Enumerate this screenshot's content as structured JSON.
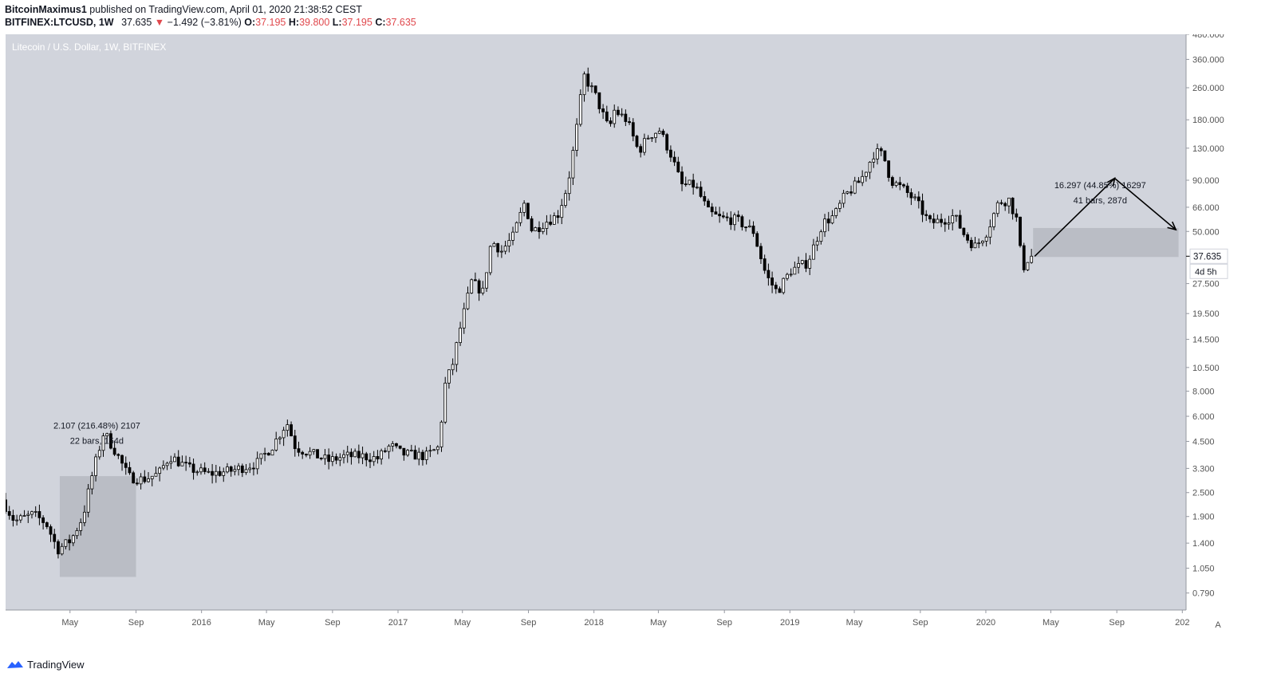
{
  "header": {
    "author": "BitcoinMaximus1",
    "published_text": " published on TradingView.com, April 01, 2020 21:38:52 CEST",
    "symbol": "BITFINEX:LTCUSD, 1W",
    "last_price": "37.635",
    "change_arrow": "▼",
    "change": "−1.492 (−3.81%)",
    "o_label": "O:",
    "o_value": "37.195",
    "h_label": "H:",
    "h_value": "39.800",
    "l_label": "L:",
    "l_value": "37.195",
    "c_label": "C:",
    "c_value": "37.635"
  },
  "footer": {
    "brand": "TradingView"
  },
  "auto_label": "A",
  "colors": {
    "plot_bg": "#d1d4dc",
    "axis_bg": "#ffffff",
    "candle": "#000000",
    "range_box": "#b2b5be",
    "price_change": "#e0484d"
  },
  "chart_data": {
    "type": "candlestick",
    "title": "Litecoin / U.S. Dollar, 1W, BITFINEX",
    "y_scale": "log",
    "y_range": [
      0.65,
      480
    ],
    "y_ticks": [
      {
        "value": 480,
        "label": "480.000"
      },
      {
        "value": 360,
        "label": "360.000"
      },
      {
        "value": 260,
        "label": "260.000"
      },
      {
        "value": 180,
        "label": "180.000"
      },
      {
        "value": 130,
        "label": "130.000"
      },
      {
        "value": 90,
        "label": "90.000"
      },
      {
        "value": 66,
        "label": "66.000"
      },
      {
        "value": 50,
        "label": "50.000"
      },
      {
        "value": 27.5,
        "label": "27.500"
      },
      {
        "value": 19.5,
        "label": "19.500"
      },
      {
        "value": 14.5,
        "label": "14.500"
      },
      {
        "value": 10.5,
        "label": "10.500"
      },
      {
        "value": 8,
        "label": "8.000"
      },
      {
        "value": 6,
        "label": "6.000"
      },
      {
        "value": 4.5,
        "label": "4.500"
      },
      {
        "value": 3.3,
        "label": "3.300"
      },
      {
        "value": 2.5,
        "label": "2.500"
      },
      {
        "value": 1.9,
        "label": "1.900"
      },
      {
        "value": 1.4,
        "label": "1.400"
      },
      {
        "value": 1.05,
        "label": "1.050"
      },
      {
        "value": 0.79,
        "label": "0.790"
      }
    ],
    "x_range": [
      "2015-01-01",
      "2021-01-08"
    ],
    "x_ticks": [
      {
        "date": "2015-05-01",
        "label": "May"
      },
      {
        "date": "2015-09-01",
        "label": "Sep"
      },
      {
        "date": "2016-01-01",
        "label": "2016"
      },
      {
        "date": "2016-05-01",
        "label": "May"
      },
      {
        "date": "2016-09-01",
        "label": "Sep"
      },
      {
        "date": "2017-01-01",
        "label": "2017"
      },
      {
        "date": "2017-05-01",
        "label": "May"
      },
      {
        "date": "2017-09-01",
        "label": "Sep"
      },
      {
        "date": "2018-01-01",
        "label": "2018"
      },
      {
        "date": "2018-05-01",
        "label": "May"
      },
      {
        "date": "2018-09-01",
        "label": "Sep"
      },
      {
        "date": "2019-01-01",
        "label": "2019"
      },
      {
        "date": "2019-05-01",
        "label": "May"
      },
      {
        "date": "2019-09-01",
        "label": "Sep"
      },
      {
        "date": "2020-01-01",
        "label": "2020"
      },
      {
        "date": "2020-05-01",
        "label": "May"
      },
      {
        "date": "2020-09-01",
        "label": "Sep"
      },
      {
        "date": "2021-01-01",
        "label": "202"
      }
    ],
    "price_series": [
      {
        "date": "2015-01-01",
        "price": 2.3
      },
      {
        "date": "2015-01-25",
        "price": 1.8
      },
      {
        "date": "2015-03-01",
        "price": 1.95
      },
      {
        "date": "2015-03-25",
        "price": 1.75
      },
      {
        "date": "2015-04-15",
        "price": 1.3
      },
      {
        "date": "2015-05-10",
        "price": 1.45
      },
      {
        "date": "2015-06-01",
        "price": 1.9
      },
      {
        "date": "2015-06-20",
        "price": 3.2
      },
      {
        "date": "2015-07-10",
        "price": 5.0
      },
      {
        "date": "2015-08-01",
        "price": 4.0
      },
      {
        "date": "2015-08-25",
        "price": 3.0
      },
      {
        "date": "2015-09-20",
        "price": 2.9
      },
      {
        "date": "2015-10-20",
        "price": 3.1
      },
      {
        "date": "2015-11-10",
        "price": 3.8
      },
      {
        "date": "2015-12-15",
        "price": 3.3
      },
      {
        "date": "2016-01-20",
        "price": 3.1
      },
      {
        "date": "2016-03-01",
        "price": 3.2
      },
      {
        "date": "2016-04-20",
        "price": 3.5
      },
      {
        "date": "2016-05-20",
        "price": 4.3
      },
      {
        "date": "2016-06-15",
        "price": 5.6
      },
      {
        "date": "2016-07-01",
        "price": 4.2
      },
      {
        "date": "2016-08-01",
        "price": 3.9
      },
      {
        "date": "2016-09-01",
        "price": 3.6
      },
      {
        "date": "2016-10-01",
        "price": 3.8
      },
      {
        "date": "2016-11-01",
        "price": 3.8
      },
      {
        "date": "2016-12-01",
        "price": 3.7
      },
      {
        "date": "2016-12-25",
        "price": 4.3
      },
      {
        "date": "2017-01-15",
        "price": 3.9
      },
      {
        "date": "2017-03-01",
        "price": 3.8
      },
      {
        "date": "2017-03-25",
        "price": 4.2
      },
      {
        "date": "2017-04-05",
        "price": 8.5
      },
      {
        "date": "2017-04-20",
        "price": 11.0
      },
      {
        "date": "2017-05-05",
        "price": 17.0
      },
      {
        "date": "2017-05-25",
        "price": 28.0
      },
      {
        "date": "2017-06-15",
        "price": 25.0
      },
      {
        "date": "2017-07-01",
        "price": 45.0
      },
      {
        "date": "2017-07-20",
        "price": 40.0
      },
      {
        "date": "2017-08-10",
        "price": 47.0
      },
      {
        "date": "2017-09-01",
        "price": 70.0
      },
      {
        "date": "2017-09-15",
        "price": 50.0
      },
      {
        "date": "2017-10-10",
        "price": 56.0
      },
      {
        "date": "2017-11-01",
        "price": 60.0
      },
      {
        "date": "2017-11-20",
        "price": 85.0
      },
      {
        "date": "2017-12-05",
        "price": 150.0
      },
      {
        "date": "2017-12-20",
        "price": 300.0
      },
      {
        "date": "2018-01-10",
        "price": 240.0
      },
      {
        "date": "2018-02-05",
        "price": 160.0
      },
      {
        "date": "2018-02-15",
        "price": 200.0
      },
      {
        "date": "2018-03-10",
        "price": 180.0
      },
      {
        "date": "2018-04-01",
        "price": 125.0
      },
      {
        "date": "2018-04-20",
        "price": 150.0
      },
      {
        "date": "2018-05-10",
        "price": 160.0
      },
      {
        "date": "2018-06-01",
        "price": 120.0
      },
      {
        "date": "2018-06-20",
        "price": 85.0
      },
      {
        "date": "2018-07-15",
        "price": 85.0
      },
      {
        "date": "2018-08-10",
        "price": 62.0
      },
      {
        "date": "2018-09-01",
        "price": 58.0
      },
      {
        "date": "2018-10-01",
        "price": 57.0
      },
      {
        "date": "2018-11-01",
        "price": 50.0
      },
      {
        "date": "2018-11-25",
        "price": 30.0
      },
      {
        "date": "2018-12-15",
        "price": 25.0
      },
      {
        "date": "2019-01-10",
        "price": 32.0
      },
      {
        "date": "2019-02-10",
        "price": 35.0
      },
      {
        "date": "2019-03-10",
        "price": 55.0
      },
      {
        "date": "2019-04-01",
        "price": 60.0
      },
      {
        "date": "2019-04-20",
        "price": 75.0
      },
      {
        "date": "2019-05-20",
        "price": 90.0
      },
      {
        "date": "2019-06-15",
        "price": 125.0
      },
      {
        "date": "2019-07-01",
        "price": 120.0
      },
      {
        "date": "2019-07-15",
        "price": 90.0
      },
      {
        "date": "2019-08-10",
        "price": 80.0
      },
      {
        "date": "2019-09-01",
        "price": 70.0
      },
      {
        "date": "2019-09-25",
        "price": 55.0
      },
      {
        "date": "2019-10-20",
        "price": 57.0
      },
      {
        "date": "2019-11-10",
        "price": 60.0
      },
      {
        "date": "2019-12-01",
        "price": 47.0
      },
      {
        "date": "2019-12-20",
        "price": 42.0
      },
      {
        "date": "2020-01-10",
        "price": 50.0
      },
      {
        "date": "2020-02-01",
        "price": 70.0
      },
      {
        "date": "2020-02-20",
        "price": 72.0
      },
      {
        "date": "2020-03-08",
        "price": 55.0
      },
      {
        "date": "2020-03-15",
        "price": 32.0
      },
      {
        "date": "2020-03-29",
        "price": 37.6
      }
    ],
    "range_boxes": [
      {
        "from": "2015-04-12",
        "to": "2015-09-01",
        "low": 0.95,
        "high": 3.02
      },
      {
        "from": "2020-03-29",
        "to": "2020-12-25",
        "low": 37.3,
        "high": 52.0
      }
    ],
    "annotations": [
      {
        "lines": [
          "2.107 (216.48%) 2107",
          "22 bars, 154d"
        ],
        "date": "2015-06-20",
        "price": 5.2
      },
      {
        "lines": [
          "16.297 (44.85%) 16297",
          "41 bars, 287d"
        ],
        "date": "2020-08-01",
        "price": 82.0
      }
    ],
    "projection": [
      {
        "date": "2020-04-01",
        "price": 37.6
      },
      {
        "date": "2020-08-28",
        "price": 92.0
      },
      {
        "date": "2020-12-20",
        "price": 51.0
      }
    ],
    "current_price": {
      "value": 37.635,
      "label": "37.635",
      "countdown": "4d 5h"
    }
  }
}
